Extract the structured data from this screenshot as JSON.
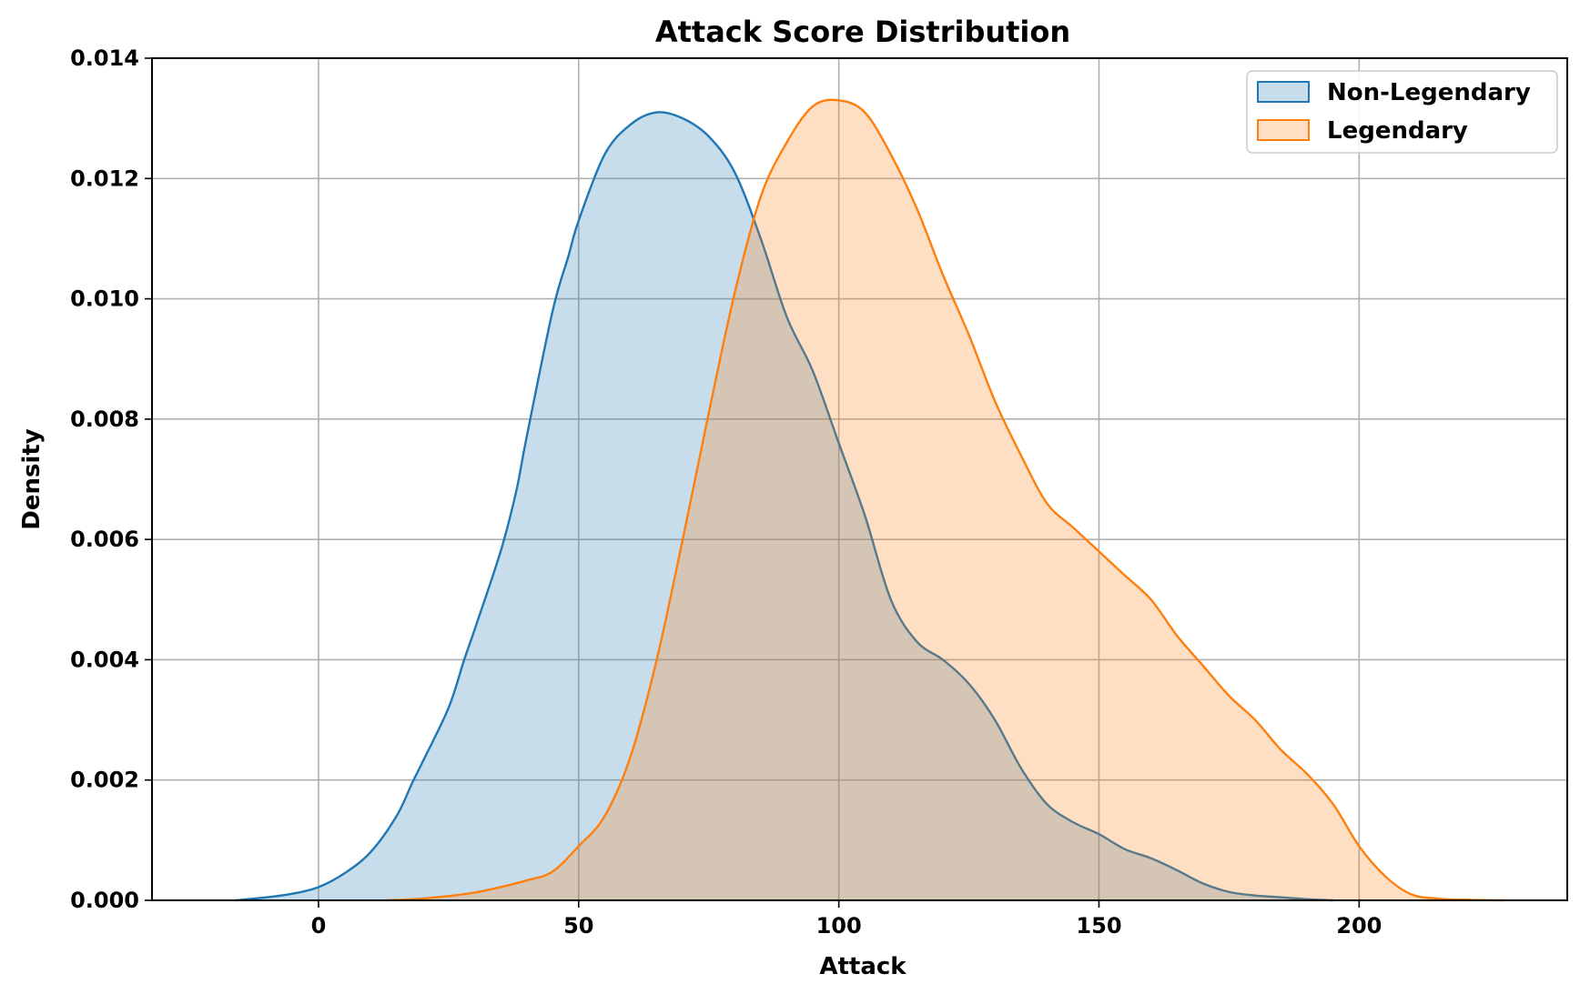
{
  "chart_data": {
    "type": "area",
    "title": "Attack Score Distribution",
    "xlabel": "Attack",
    "ylabel": "Density",
    "xlim": [
      -32,
      240
    ],
    "ylim": [
      0,
      0.014
    ],
    "xticks": [
      0,
      50,
      100,
      150,
      200
    ],
    "yticks": [
      0,
      0.002,
      0.004,
      0.006,
      0.008,
      0.01,
      0.012,
      0.014
    ],
    "xtick_labels": [
      "0",
      "50",
      "100",
      "150",
      "200"
    ],
    "ytick_labels": [
      "0.000",
      "0.002",
      "0.004",
      "0.006",
      "0.008",
      "0.010",
      "0.012",
      "0.014"
    ],
    "grid": true,
    "legend_position": "top-right",
    "series": [
      {
        "name": "Non-Legendary",
        "color": "#1f77b4",
        "fill_color": "#c6dbeb",
        "x": [
          -16,
          -10,
          -5,
          0,
          5,
          10,
          15,
          18,
          20,
          25,
          28,
          30,
          35,
          38,
          40,
          45,
          48,
          50,
          55,
          60,
          65,
          70,
          75,
          80,
          85,
          90,
          95,
          100,
          105,
          110,
          115,
          120,
          125,
          130,
          135,
          140,
          145,
          150,
          155,
          160,
          165,
          170,
          175,
          180,
          185,
          190,
          195
        ],
        "y": [
          0.0,
          5e-05,
          0.00011,
          0.00022,
          0.00045,
          0.0008,
          0.0014,
          0.00195,
          0.0023,
          0.0032,
          0.004,
          0.0045,
          0.0058,
          0.0068,
          0.0077,
          0.0098,
          0.0107,
          0.0113,
          0.0124,
          0.0129,
          0.0131,
          0.013,
          0.0127,
          0.0121,
          0.011,
          0.0097,
          0.0088,
          0.0076,
          0.0064,
          0.005,
          0.0043,
          0.004,
          0.0036,
          0.003,
          0.0022,
          0.0016,
          0.0013,
          0.0011,
          0.00085,
          0.0007,
          0.0005,
          0.00028,
          0.00014,
          8e-05,
          5e-05,
          2e-05,
          0.0
        ]
      },
      {
        "name": "Legendary",
        "color": "#ff7f0e",
        "fill_color": "#ffdcbf",
        "x": [
          13,
          20,
          30,
          40,
          45,
          50,
          55,
          60,
          65,
          70,
          75,
          80,
          85,
          90,
          95,
          100,
          105,
          110,
          115,
          120,
          125,
          130,
          135,
          140,
          145,
          150,
          155,
          160,
          165,
          170,
          175,
          180,
          185,
          190,
          195,
          200,
          205,
          210,
          215,
          220,
          228
        ],
        "y": [
          0.0,
          3e-05,
          0.00013,
          0.00033,
          0.00048,
          0.0009,
          0.0014,
          0.0024,
          0.004,
          0.006,
          0.0081,
          0.0101,
          0.0117,
          0.0126,
          0.0132,
          0.0133,
          0.0131,
          0.0124,
          0.0115,
          0.0104,
          0.0094,
          0.0083,
          0.0074,
          0.0066,
          0.0062,
          0.0058,
          0.0054,
          0.005,
          0.0044,
          0.0039,
          0.0034,
          0.003,
          0.0025,
          0.0021,
          0.0016,
          0.0009,
          0.0004,
          0.0001,
          3e-05,
          1e-05,
          0.0
        ]
      }
    ]
  }
}
